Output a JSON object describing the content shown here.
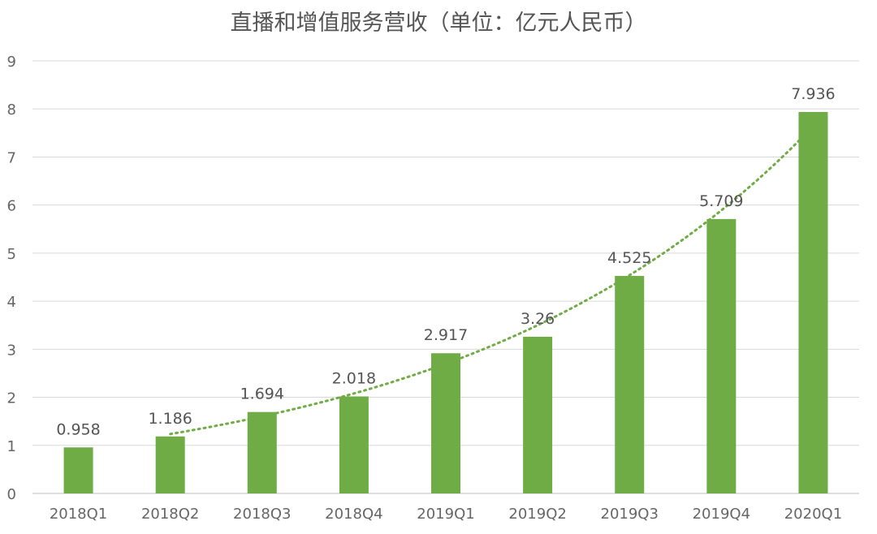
{
  "chart_data": {
    "type": "bar",
    "title": "直播和增值服务营收（单位：亿元人民币）",
    "categories": [
      "2018Q1",
      "2018Q2",
      "2018Q3",
      "2018Q4",
      "2019Q1",
      "2019Q2",
      "2019Q3",
      "2019Q4",
      "2020Q1"
    ],
    "series": [
      {
        "values": [
          0.958,
          1.186,
          1.694,
          2.018,
          2.917,
          3.26,
          4.525,
          5.709,
          7.936
        ]
      }
    ],
    "data_labels": [
      "0.958",
      "1.186",
      "1.694",
      "2.018",
      "2.917",
      "3.26",
      "4.525",
      "5.709",
      "7.936"
    ],
    "ylim": [
      0,
      9
    ],
    "yticks": [
      "0",
      "1",
      "2",
      "3",
      "4",
      "5",
      "6",
      "7",
      "8",
      "9"
    ],
    "grid": true,
    "trendline": {
      "style": "dotted",
      "type": "exponential",
      "from_category": "2018Q2",
      "to_category": "2020Q1"
    },
    "colors": {
      "bar": "#6fac46",
      "trendline": "#6fac46",
      "grid": "#d9d9d9",
      "text": "#666666"
    }
  }
}
